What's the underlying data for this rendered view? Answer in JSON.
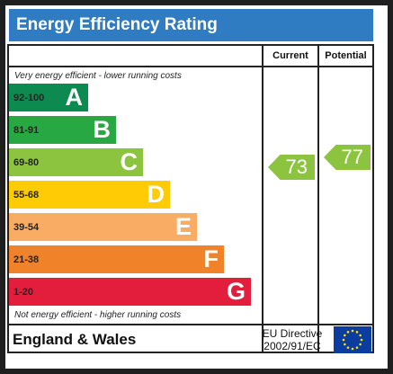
{
  "title": "Energy Efficiency Rating",
  "columns": {
    "current": "Current",
    "potential": "Potential"
  },
  "top_note": "Very energy efficient - lower running costs",
  "bottom_note": "Not energy efficient - higher running costs",
  "bands": [
    {
      "range": "92-100",
      "letter": "A",
      "color": "#0c8a4f"
    },
    {
      "range": "81-91",
      "letter": "B",
      "color": "#27a843"
    },
    {
      "range": "69-80",
      "letter": "C",
      "color": "#8cc43f"
    },
    {
      "range": "55-68",
      "letter": "D",
      "color": "#ffcb05"
    },
    {
      "range": "39-54",
      "letter": "E",
      "color": "#f9ad64"
    },
    {
      "range": "21-38",
      "letter": "F",
      "color": "#f0822a"
    },
    {
      "range": "1-20",
      "letter": "G",
      "color": "#e31d3c"
    }
  ],
  "current_rating": {
    "value": "73",
    "band": "C",
    "color": "#8cc43f"
  },
  "potential_rating": {
    "value": "77",
    "band": "C",
    "color": "#8cc43f"
  },
  "footer": {
    "country": "England & Wales",
    "directive_line1": "EU Directive",
    "directive_line2": "2002/91/EC"
  },
  "colors": {
    "title_bar": "#2f7cc2",
    "eu_flag": "#0a3d9e",
    "eu_stars": "#ffde00"
  }
}
